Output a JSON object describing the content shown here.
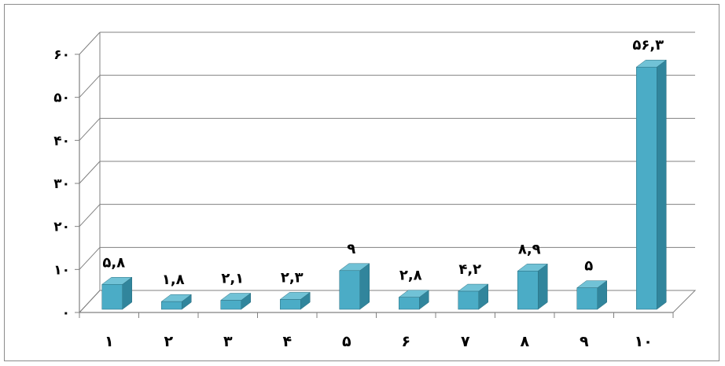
{
  "chart_data": {
    "type": "bar",
    "style": "3d-column",
    "categories": [
      "۱",
      "۲",
      "۳",
      "۴",
      "۵",
      "۶",
      "۷",
      "۸",
      "۹",
      "۱۰"
    ],
    "values": [
      5.8,
      1.8,
      2.1,
      2.3,
      9,
      2.8,
      4.2,
      8.9,
      5,
      56.3
    ],
    "data_labels": [
      "۵,۸",
      "۱,۸",
      "۲,۱",
      "۲,۳",
      "۹",
      "۲,۸",
      "۴,۲",
      "۸,۹",
      "۵",
      "۵۶,۳"
    ],
    "y_ticks": [
      {
        "value": 0,
        "label": "۰"
      },
      {
        "value": 10,
        "label": "۱۰"
      },
      {
        "value": 20,
        "label": "۲۰"
      },
      {
        "value": 30,
        "label": "۳۰"
      },
      {
        "value": 40,
        "label": "۴۰"
      },
      {
        "value": 50,
        "label": "۵۰"
      },
      {
        "value": 60,
        "label": "۶۰"
      }
    ],
    "ylim": [
      0,
      60
    ],
    "grid": true,
    "legend": "none",
    "colors": {
      "bar_front": "#4bacc6",
      "bar_top": "#71c2d6",
      "bar_side": "#31859c",
      "grid": "#808080",
      "axis": "#808080"
    }
  }
}
